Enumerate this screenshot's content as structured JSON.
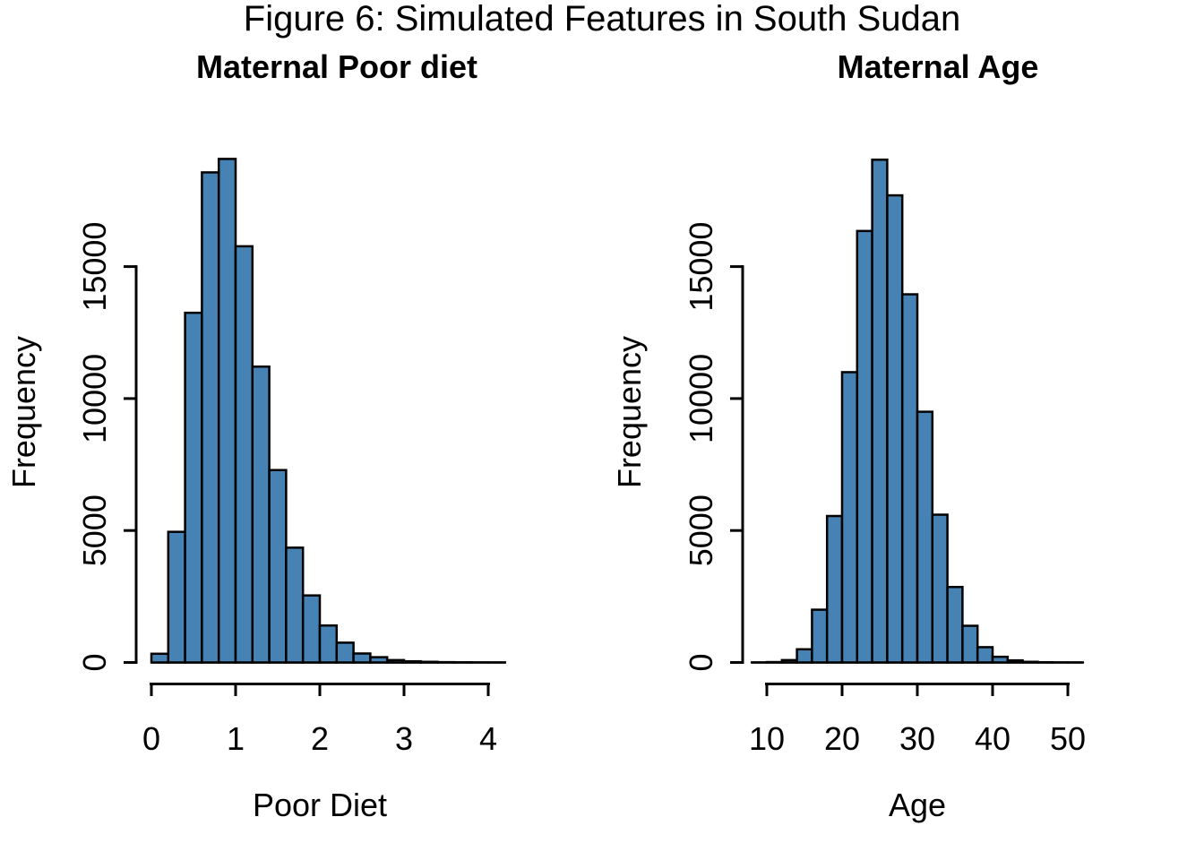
{
  "figure": {
    "title": "Figure 6: Simulated Features in South Sudan",
    "background_color": "#ffffff",
    "axis_color": "#000000"
  },
  "chart_data": [
    {
      "type": "bar",
      "subtype": "histogram",
      "title": "Maternal Poor diet",
      "xlabel": "Poor Diet",
      "ylabel": "Frequency",
      "bar_color": "#4682B4",
      "bar_border": "#000000",
      "grid": "off",
      "legend": "none",
      "xticks": [
        0,
        1,
        2,
        3,
        4
      ],
      "yticks": [
        0,
        5000,
        10000,
        15000
      ],
      "xlim": [
        0,
        4.2
      ],
      "ylim": [
        0,
        19100
      ],
      "bin_start": 0,
      "bin_width": 0.2,
      "counts": [
        330,
        4950,
        13250,
        18570,
        19080,
        15770,
        11210,
        7290,
        4350,
        2540,
        1400,
        750,
        340,
        200,
        90,
        45,
        25,
        12,
        6,
        3,
        2
      ]
    },
    {
      "type": "bar",
      "subtype": "histogram",
      "title": "Maternal Age",
      "xlabel": "Age",
      "ylabel": "Frequency",
      "bar_color": "#4682B4",
      "bar_border": "#000000",
      "grid": "off",
      "legend": "none",
      "xticks": [
        10,
        20,
        30,
        40,
        50
      ],
      "yticks": [
        0,
        5000,
        10000,
        15000
      ],
      "xlim": [
        8,
        52
      ],
      "ylim": [
        0,
        19100
      ],
      "bin_start": 8,
      "bin_width": 2,
      "counts": [
        2,
        15,
        90,
        500,
        2000,
        5550,
        11000,
        16350,
        19050,
        17700,
        13950,
        9500,
        5600,
        2860,
        1390,
        580,
        215,
        80,
        25,
        8,
        3,
        1
      ]
    }
  ]
}
